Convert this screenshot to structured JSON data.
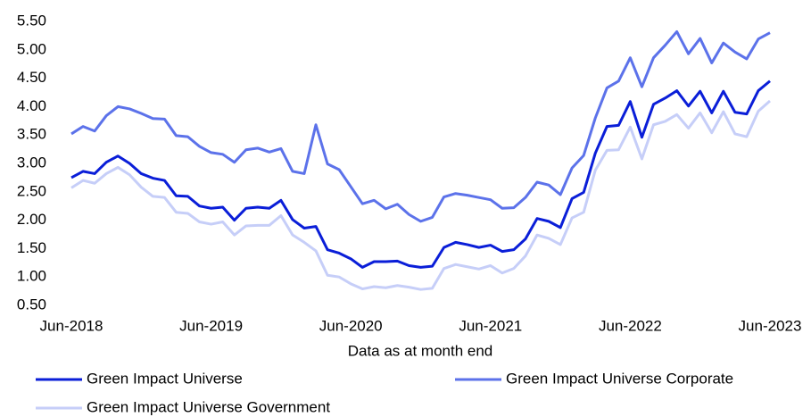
{
  "chart_data": {
    "type": "line",
    "x_label": "Data as at month end",
    "categories": [
      "Jun-2018",
      null,
      null,
      null,
      null,
      null,
      null,
      null,
      null,
      null,
      null,
      null,
      "Jun-2019",
      null,
      null,
      null,
      null,
      null,
      null,
      null,
      null,
      null,
      null,
      null,
      "Jun-2020",
      null,
      null,
      null,
      null,
      null,
      null,
      null,
      null,
      null,
      null,
      null,
      "Jun-2021",
      null,
      null,
      null,
      null,
      null,
      null,
      null,
      null,
      null,
      null,
      null,
      "Jun-2022",
      null,
      null,
      null,
      null,
      null,
      null,
      null,
      null,
      null,
      null,
      null,
      "Jun-2023"
    ],
    "series": [
      {
        "name": "Green Impact Universe",
        "color": "#0a1ed8",
        "values": [
          2.75,
          2.86,
          2.82,
          3.02,
          3.13,
          3.0,
          2.82,
          2.74,
          2.7,
          2.43,
          2.42,
          2.25,
          2.21,
          2.23,
          2.0,
          2.21,
          2.23,
          2.21,
          2.35,
          2.01,
          1.86,
          1.89,
          1.48,
          1.42,
          1.32,
          1.17,
          1.27,
          1.27,
          1.28,
          1.2,
          1.17,
          1.19,
          1.52,
          1.61,
          1.57,
          1.52,
          1.56,
          1.45,
          1.48,
          1.67,
          2.03,
          1.98,
          1.87,
          2.38,
          2.49,
          3.18,
          3.65,
          3.67,
          4.09,
          3.46,
          4.04,
          4.15,
          4.28,
          4.01,
          4.27,
          3.89,
          4.27,
          3.9,
          3.87,
          4.28,
          4.45
        ]
      },
      {
        "name": "Green Impact Universe Corporate",
        "color": "#5c72ea",
        "values": [
          3.52,
          3.65,
          3.57,
          3.84,
          4.0,
          3.96,
          3.88,
          3.79,
          3.78,
          3.49,
          3.47,
          3.3,
          3.19,
          3.16,
          3.02,
          3.24,
          3.27,
          3.2,
          3.26,
          2.86,
          2.82,
          3.68,
          2.99,
          2.89,
          2.59,
          2.29,
          2.35,
          2.2,
          2.28,
          2.1,
          1.98,
          2.05,
          2.41,
          2.47,
          2.44,
          2.4,
          2.36,
          2.21,
          2.22,
          2.4,
          2.67,
          2.62,
          2.45,
          2.92,
          3.14,
          3.8,
          4.33,
          4.45,
          4.86,
          4.35,
          4.86,
          5.08,
          5.32,
          4.93,
          5.2,
          4.77,
          5.12,
          4.96,
          4.84,
          5.19,
          5.3
        ]
      },
      {
        "name": "Green Impact Universe Government",
        "color": "#c6cef8",
        "values": [
          2.57,
          2.7,
          2.65,
          2.82,
          2.93,
          2.8,
          2.58,
          2.42,
          2.4,
          2.14,
          2.12,
          1.97,
          1.93,
          1.97,
          1.74,
          1.9,
          1.91,
          1.91,
          2.08,
          1.74,
          1.61,
          1.46,
          1.03,
          1.0,
          0.88,
          0.79,
          0.83,
          0.81,
          0.85,
          0.82,
          0.78,
          0.8,
          1.15,
          1.22,
          1.18,
          1.14,
          1.2,
          1.07,
          1.15,
          1.37,
          1.74,
          1.68,
          1.57,
          2.04,
          2.14,
          2.88,
          3.23,
          3.24,
          3.64,
          3.08,
          3.68,
          3.74,
          3.86,
          3.62,
          3.89,
          3.54,
          3.91,
          3.52,
          3.47,
          3.92,
          4.1
        ]
      }
    ],
    "ylim": [
      0.5,
      5.5
    ],
    "yticks": [
      {
        "value": 0.5,
        "label": "0.50"
      },
      {
        "value": 1,
        "label": "1.00"
      },
      {
        "value": 1.5,
        "label": "1.50"
      },
      {
        "value": 2,
        "label": "2.00"
      },
      {
        "value": 2.5,
        "label": "2.50"
      },
      {
        "value": 3,
        "label": "3.00"
      },
      {
        "value": 3.5,
        "label": "3.50"
      },
      {
        "value": 4,
        "label": "4.00"
      },
      {
        "value": 4.5,
        "label": "4.50"
      },
      {
        "value": 5,
        "label": "5.00"
      },
      {
        "value": 5.5,
        "label": "5.50"
      }
    ],
    "grid": false,
    "legend": "bottom"
  }
}
